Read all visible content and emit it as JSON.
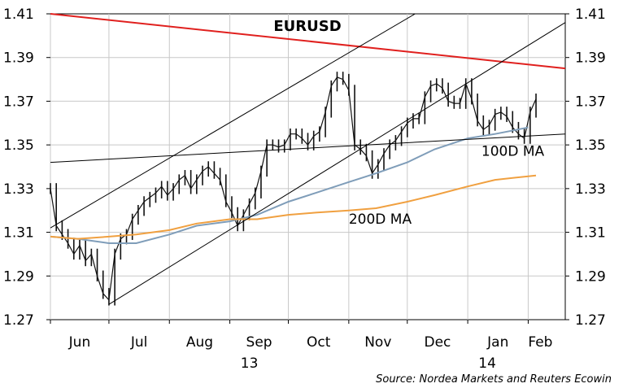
{
  "chart_data": {
    "type": "line",
    "title": "EURUSD",
    "source": "Source: Nordea Markets and Reuters Ecowin",
    "ylim": [
      1.27,
      1.41
    ],
    "yticks": [
      "1.41",
      "1.39",
      "1.37",
      "1.35",
      "1.33",
      "1.31",
      "1.29",
      "1.27"
    ],
    "xlim": [
      "2013-06-01",
      "2014-02-20"
    ],
    "months": [
      {
        "label": "Jun",
        "date": "2013-06-01"
      },
      {
        "label": "Jul",
        "date": "2013-07-01"
      },
      {
        "label": "Aug",
        "date": "2013-08-01"
      },
      {
        "label": "Sep",
        "date": "2013-09-01"
      },
      {
        "label": "Oct",
        "date": "2013-10-01"
      },
      {
        "label": "Nov",
        "date": "2013-11-01"
      },
      {
        "label": "Dec",
        "date": "2013-12-01"
      },
      {
        "label": "Jan",
        "date": "2014-01-01"
      },
      {
        "label": "Feb",
        "date": "2014-02-01"
      }
    ],
    "years": [
      {
        "label": "13",
        "date": "2013-09-01"
      },
      {
        "label": "14",
        "date": "2014-01-01"
      }
    ],
    "grid": true,
    "series": [
      {
        "name": "EURUSD",
        "color": "#111111",
        "style": "bars",
        "points": [
          [
            "2013-06-01",
            1.33
          ],
          [
            "2013-06-04",
            1.313
          ],
          [
            "2013-06-07",
            1.309
          ],
          [
            "2013-06-10",
            1.305
          ],
          [
            "2013-06-13",
            1.3
          ],
          [
            "2013-06-16",
            1.304
          ],
          [
            "2013-06-19",
            1.297
          ],
          [
            "2013-06-22",
            1.3
          ],
          [
            "2013-06-25",
            1.29
          ],
          [
            "2013-06-28",
            1.282
          ],
          [
            "2013-07-01",
            1.279
          ],
          [
            "2013-07-04",
            1.3
          ],
          [
            "2013-07-07",
            1.307
          ],
          [
            "2013-07-10",
            1.309
          ],
          [
            "2013-07-13",
            1.316
          ],
          [
            "2013-07-16",
            1.32
          ],
          [
            "2013-07-19",
            1.324
          ],
          [
            "2013-07-22",
            1.326
          ],
          [
            "2013-07-25",
            1.328
          ],
          [
            "2013-07-28",
            1.331
          ],
          [
            "2013-07-31",
            1.327
          ],
          [
            "2013-08-03",
            1.33
          ],
          [
            "2013-08-06",
            1.334
          ],
          [
            "2013-08-09",
            1.336
          ],
          [
            "2013-08-12",
            1.33
          ],
          [
            "2013-08-15",
            1.334
          ],
          [
            "2013-08-18",
            1.338
          ],
          [
            "2013-08-21",
            1.34
          ],
          [
            "2013-08-24",
            1.337
          ],
          [
            "2013-08-27",
            1.334
          ],
          [
            "2013-08-30",
            1.324
          ],
          [
            "2013-09-02",
            1.319
          ],
          [
            "2013-09-05",
            1.313
          ],
          [
            "2013-09-08",
            1.318
          ],
          [
            "2013-09-11",
            1.323
          ],
          [
            "2013-09-14",
            1.328
          ],
          [
            "2013-09-17",
            1.338
          ],
          [
            "2013-09-20",
            1.35
          ],
          [
            "2013-09-23",
            1.35
          ],
          [
            "2013-09-26",
            1.349
          ],
          [
            "2013-09-29",
            1.35
          ],
          [
            "2013-10-02",
            1.355
          ],
          [
            "2013-10-05",
            1.355
          ],
          [
            "2013-10-08",
            1.353
          ],
          [
            "2013-10-11",
            1.35
          ],
          [
            "2013-10-14",
            1.354
          ],
          [
            "2013-10-17",
            1.356
          ],
          [
            "2013-10-20",
            1.365
          ],
          [
            "2013-10-23",
            1.377
          ],
          [
            "2013-10-26",
            1.381
          ],
          [
            "2013-10-29",
            1.38
          ],
          [
            "2013-11-01",
            1.375
          ],
          [
            "2013-11-04",
            1.35
          ],
          [
            "2013-11-07",
            1.348
          ],
          [
            "2013-11-10",
            1.345
          ],
          [
            "2013-11-13",
            1.337
          ],
          [
            "2013-11-16",
            1.341
          ],
          [
            "2013-11-19",
            1.346
          ],
          [
            "2013-11-22",
            1.35
          ],
          [
            "2013-11-25",
            1.352
          ],
          [
            "2013-11-28",
            1.356
          ],
          [
            "2013-12-01",
            1.36
          ],
          [
            "2013-12-04",
            1.362
          ],
          [
            "2013-12-07",
            1.362
          ],
          [
            "2013-12-10",
            1.372
          ],
          [
            "2013-12-13",
            1.377
          ],
          [
            "2013-12-16",
            1.378
          ],
          [
            "2013-12-19",
            1.376
          ],
          [
            "2013-12-22",
            1.37
          ],
          [
            "2013-12-25",
            1.369
          ],
          [
            "2013-12-28",
            1.369
          ],
          [
            "2013-12-31",
            1.378
          ],
          [
            "2014-01-03",
            1.371
          ],
          [
            "2014-01-06",
            1.361
          ],
          [
            "2014-01-09",
            1.357
          ],
          [
            "2014-01-12",
            1.359
          ],
          [
            "2014-01-15",
            1.364
          ],
          [
            "2014-01-18",
            1.365
          ],
          [
            "2014-01-21",
            1.363
          ],
          [
            "2014-01-24",
            1.358
          ],
          [
            "2014-01-27",
            1.355
          ],
          [
            "2014-01-30",
            1.353
          ],
          [
            "2014-02-02",
            1.365
          ],
          [
            "2014-02-05",
            1.371
          ]
        ]
      },
      {
        "name": "100D MA",
        "color": "#7f9db9",
        "style": "line",
        "points": [
          [
            "2013-06-01",
            1.308
          ],
          [
            "2013-06-15",
            1.307
          ],
          [
            "2013-07-01",
            1.305
          ],
          [
            "2013-07-15",
            1.305
          ],
          [
            "2013-08-01",
            1.309
          ],
          [
            "2013-08-15",
            1.313
          ],
          [
            "2013-09-01",
            1.315
          ],
          [
            "2013-09-15",
            1.318
          ],
          [
            "2013-10-01",
            1.324
          ],
          [
            "2013-10-15",
            1.328
          ],
          [
            "2013-11-01",
            1.333
          ],
          [
            "2013-11-15",
            1.337
          ],
          [
            "2013-12-01",
            1.342
          ],
          [
            "2013-12-15",
            1.348
          ],
          [
            "2014-01-01",
            1.353
          ],
          [
            "2014-01-15",
            1.355
          ],
          [
            "2014-02-01",
            1.358
          ]
        ]
      },
      {
        "name": "200D MA",
        "color": "#f0a040",
        "style": "line",
        "points": [
          [
            "2013-06-01",
            1.308
          ],
          [
            "2013-06-15",
            1.307
          ],
          [
            "2013-07-01",
            1.308
          ],
          [
            "2013-07-15",
            1.309
          ],
          [
            "2013-08-01",
            1.311
          ],
          [
            "2013-08-15",
            1.314
          ],
          [
            "2013-09-01",
            1.316
          ],
          [
            "2013-09-15",
            1.316
          ],
          [
            "2013-10-01",
            1.318
          ],
          [
            "2013-10-15",
            1.319
          ],
          [
            "2013-11-01",
            1.32
          ],
          [
            "2013-11-15",
            1.321
          ],
          [
            "2013-12-01",
            1.324
          ],
          [
            "2013-12-15",
            1.327
          ],
          [
            "2014-01-01",
            1.331
          ],
          [
            "2014-01-15",
            1.334
          ],
          [
            "2014-02-05",
            1.336
          ]
        ]
      },
      {
        "name": "Trend line",
        "color": "#e0201e",
        "style": "trend",
        "points": [
          [
            "2013-06-01",
            1.41
          ],
          [
            "2014-02-20",
            1.385
          ]
        ]
      },
      {
        "name": "Channel upper",
        "color": "#000000",
        "style": "trend",
        "points": [
          [
            "2013-06-01",
            1.312
          ],
          [
            "2013-12-05",
            1.41
          ]
        ]
      },
      {
        "name": "Channel lower",
        "color": "#000000",
        "style": "trend",
        "points": [
          [
            "2013-07-01",
            1.277
          ],
          [
            "2014-02-20",
            1.406
          ]
        ]
      },
      {
        "name": "Support line",
        "color": "#000000",
        "style": "trend",
        "points": [
          [
            "2013-06-01",
            1.342
          ],
          [
            "2014-02-20",
            1.355
          ]
        ]
      }
    ],
    "annotations": [
      {
        "text": "100D MA",
        "date": "2014-01-08",
        "value": 1.345
      },
      {
        "text": "200D MA",
        "date": "2013-11-01",
        "value": 1.314
      }
    ]
  }
}
